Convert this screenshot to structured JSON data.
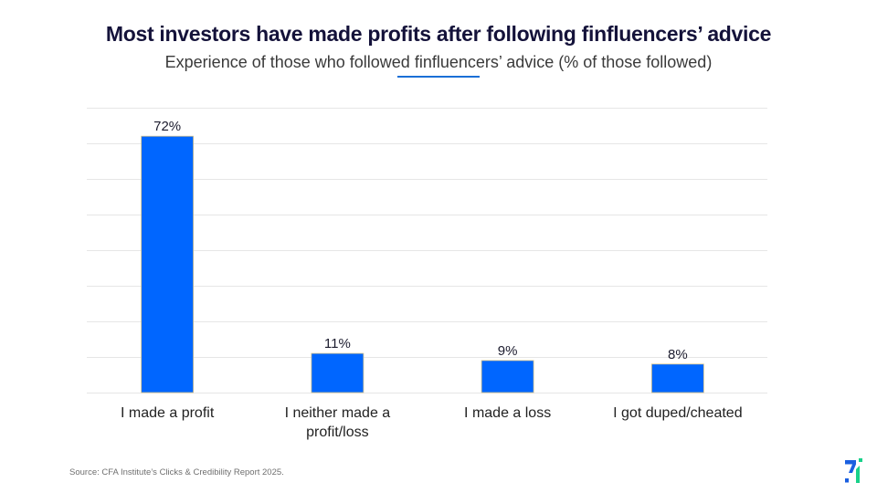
{
  "header": {
    "title": "Most investors have made profits after following finfluencers’ advice",
    "subtitle": "Experience of those who followed finfluencers’ advice (% of those followed)"
  },
  "footer": {
    "source": "Source: CFA Institute’s Clicks & Credibility Report 2025."
  },
  "logo": {
    "icon": "brand-logo-icon",
    "colors": [
      "#1a5fe0",
      "#19d18a"
    ]
  },
  "colors": {
    "bar": "#0066ff",
    "bar_border": "#d8c48a",
    "grid": "#e6e6e6",
    "label": "#222222",
    "accent": "#1a6fd6"
  },
  "chart_data": {
    "type": "bar",
    "title": "Most investors have made profits after following finfluencers’ advice",
    "subtitle": "Experience of those who followed finfluencers’ advice (% of those followed)",
    "xlabel": "",
    "ylabel": "",
    "categories": [
      [
        "I made a profit"
      ],
      [
        "I neither made a",
        "profit/loss"
      ],
      [
        "I made a loss"
      ],
      [
        "I got duped/cheated"
      ]
    ],
    "values": [
      72,
      11,
      9,
      8
    ],
    "data_labels": [
      "72%",
      "11%",
      "9%",
      "8%"
    ],
    "ylim": [
      0,
      80
    ],
    "ytick_step": 10,
    "grid": true,
    "y_axis_labels_visible": false,
    "legend": "none"
  }
}
